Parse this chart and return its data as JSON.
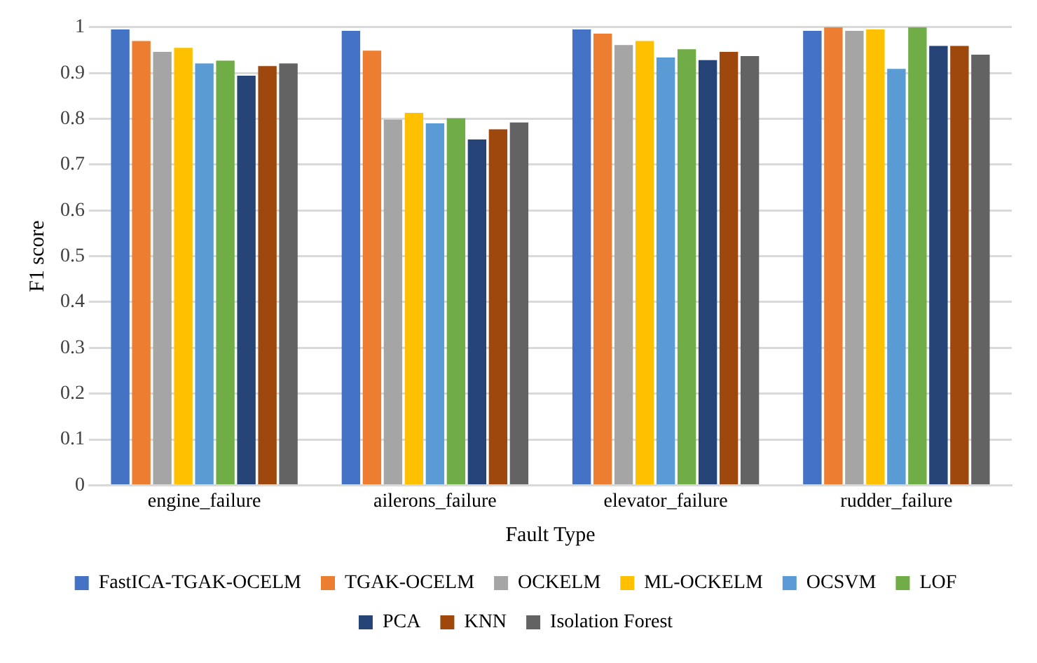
{
  "chart_data": {
    "type": "bar",
    "xlabel": "Fault Type",
    "ylabel": "F1 score",
    "categories": [
      "engine_failure",
      "ailerons_failure",
      "elevator_failure",
      "rudder_failure"
    ],
    "series": [
      {
        "name": "FastICA-TGAK-OCELM",
        "color": "#4472c4",
        "values": [
          0.995,
          0.992,
          0.995,
          0.992
        ]
      },
      {
        "name": "TGAK-OCELM",
        "color": "#ed7d31",
        "values": [
          0.97,
          0.949,
          0.986,
          1.0
        ]
      },
      {
        "name": "OCKELM",
        "color": "#a5a5a5",
        "values": [
          0.946,
          0.798,
          0.961,
          0.992
        ]
      },
      {
        "name": "ML-OCKELM",
        "color": "#ffc000",
        "values": [
          0.955,
          0.813,
          0.97,
          0.995
        ]
      },
      {
        "name": "OCSVM",
        "color": "#5b9bd5",
        "values": [
          0.921,
          0.79,
          0.934,
          0.909
        ]
      },
      {
        "name": "LOF",
        "color": "#70ad47",
        "values": [
          0.927,
          0.801,
          0.952,
          1.0
        ]
      },
      {
        "name": "PCA",
        "color": "#264478",
        "values": [
          0.894,
          0.755,
          0.928,
          0.959
        ]
      },
      {
        "name": "KNN",
        "color": "#9e480e",
        "values": [
          0.915,
          0.777,
          0.946,
          0.959
        ]
      },
      {
        "name": "Isolation Forest",
        "color": "#636363",
        "values": [
          0.921,
          0.792,
          0.937,
          0.94
        ]
      }
    ],
    "ylim": [
      0,
      1
    ],
    "yticks": [
      0,
      0.1,
      0.2,
      0.3,
      0.4,
      0.5,
      0.6,
      0.7,
      0.8,
      0.9,
      1
    ],
    "grid": "y",
    "legend": "bottom"
  }
}
